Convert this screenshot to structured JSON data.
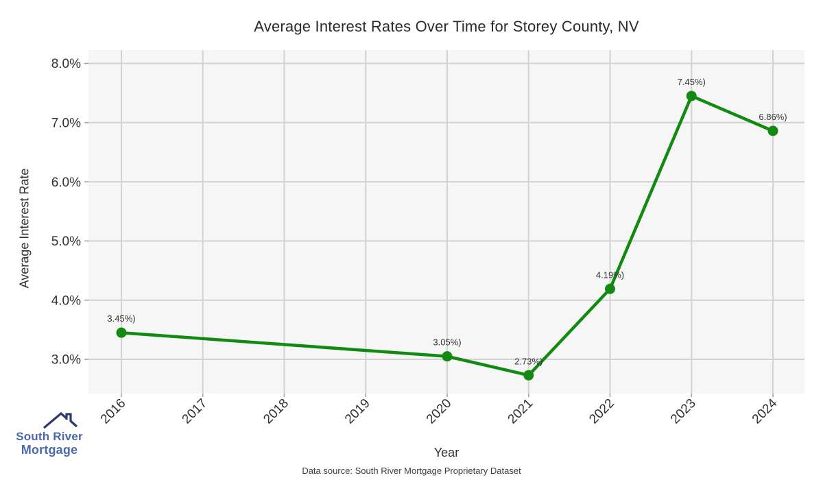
{
  "title": "Average Interest Rates Over Time for Storey County, NV",
  "chart_data": {
    "type": "line",
    "title": "Average Interest Rates Over Time for Storey County, NV",
    "xlabel": "Year",
    "ylabel": "Average Interest Rate",
    "x_ticks": [
      2016,
      2017,
      2018,
      2019,
      2020,
      2021,
      2022,
      2023,
      2024
    ],
    "y_ticks": [
      8.0,
      7.0,
      6.0,
      5.0,
      4.0,
      3.0
    ],
    "y_tick_suffix": "%",
    "xlim": [
      2015.6,
      2024.4
    ],
    "ylim": [
      2.42,
      8.22
    ],
    "grid": true,
    "legend": "none",
    "series": [
      {
        "name": "Average Interest Rate",
        "points": [
          {
            "x": 2016,
            "y": 3.45,
            "label": "3.45%)"
          },
          {
            "x": 2020,
            "y": 3.05,
            "label": "3.05%)"
          },
          {
            "x": 2021,
            "y": 2.73,
            "label": "2.73%)"
          },
          {
            "x": 2022,
            "y": 4.19,
            "label": "4.19%)"
          },
          {
            "x": 2023,
            "y": 7.45,
            "label": "7.45%)"
          },
          {
            "x": 2024,
            "y": 6.86,
            "label": "6.86%)"
          }
        ]
      }
    ]
  },
  "colors": {
    "line": "#128a12",
    "marker": "#128a12",
    "plot_background": "#f6f6f6",
    "gridline": "#d2d2d2",
    "tick_mark": "#a0a0a0",
    "tick_text": "#303030",
    "point_label_text": "#333333",
    "logo_text": "#4a68b0",
    "logo_roof": "#2c3a6b"
  },
  "footer": {
    "data_source": "Data source: South River Mortgage Proprietary Dataset"
  },
  "logo": {
    "line1": "South River",
    "line2": "Mortgage"
  }
}
